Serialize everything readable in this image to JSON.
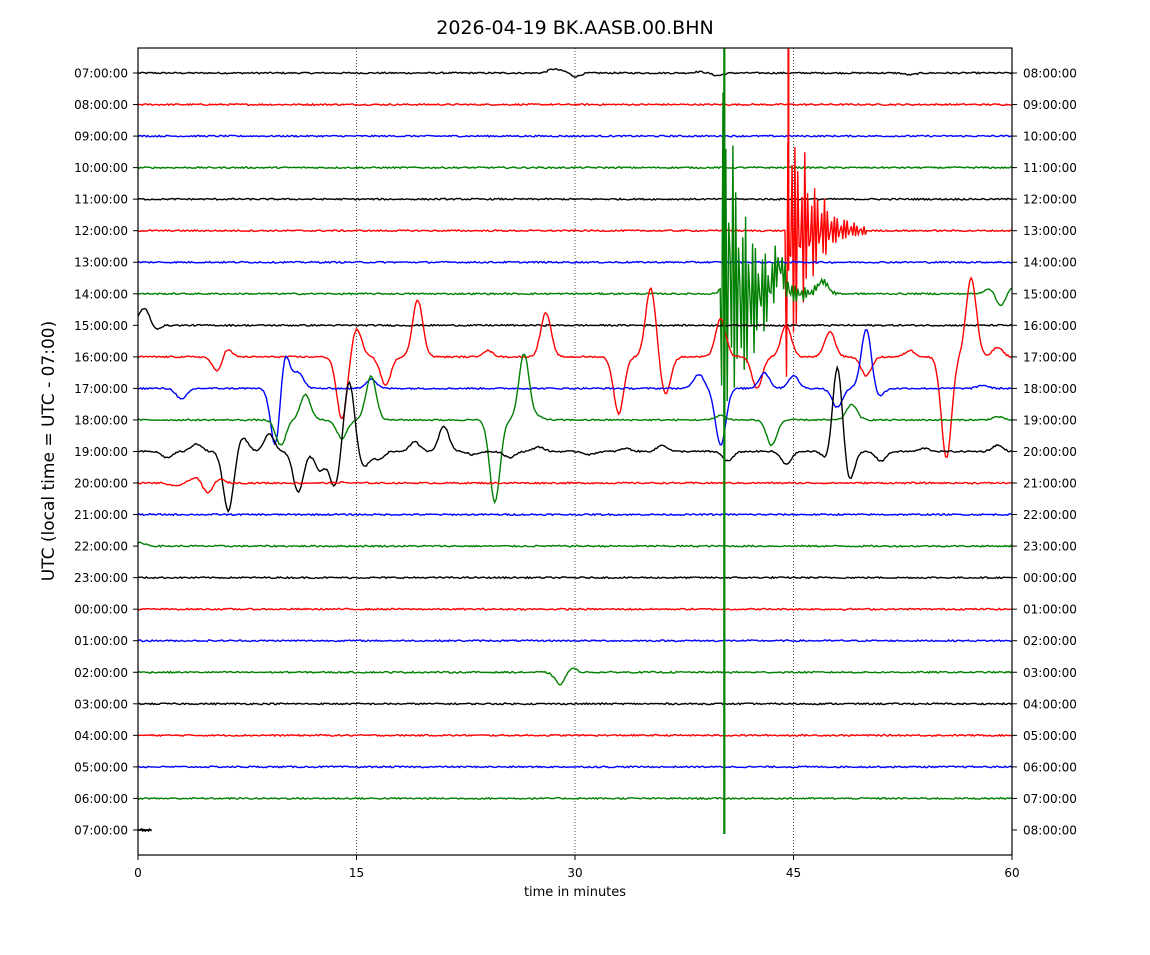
{
  "chart_data": {
    "type": "line",
    "title": "2026-04-19 BK.AASB.00.BHN",
    "xlabel": "time in minutes",
    "ylabel": "UTC (local time = UTC - 07:00)",
    "xlim": [
      0,
      60
    ],
    "x_ticks": [
      0,
      15,
      30,
      45,
      60
    ],
    "grid": "vertical dotted lines at 15, 30, 45",
    "left_labels": [
      "07:00:00",
      "08:00:00",
      "09:00:00",
      "10:00:00",
      "11:00:00",
      "12:00:00",
      "13:00:00",
      "14:00:00",
      "15:00:00",
      "16:00:00",
      "17:00:00",
      "18:00:00",
      "19:00:00",
      "20:00:00",
      "21:00:00",
      "22:00:00",
      "23:00:00",
      "00:00:00",
      "01:00:00",
      "02:00:00",
      "03:00:00",
      "04:00:00",
      "05:00:00",
      "06:00:00",
      "07:00:00"
    ],
    "right_labels": [
      "08:00:00",
      "09:00:00",
      "10:00:00",
      "11:00:00",
      "12:00:00",
      "13:00:00",
      "14:00:00",
      "15:00:00",
      "16:00:00",
      "17:00:00",
      "18:00:00",
      "19:00:00",
      "20:00:00",
      "21:00:00",
      "22:00:00",
      "23:00:00",
      "00:00:00",
      "01:00:00",
      "02:00:00",
      "03:00:00",
      "04:00:00",
      "05:00:00",
      "06:00:00",
      "07:00:00",
      "08:00:00"
    ],
    "trace_colors": [
      "#000000",
      "#ff0000",
      "#0000ff",
      "#008000"
    ],
    "events": [
      {
        "row": 0,
        "x": [
          28.5,
          29.3,
          30.0,
          38.5,
          39.8,
          53.0
        ],
        "y": [
          0.12,
          0.06,
          -0.12,
          0.04,
          -0.08,
          -0.06
        ]
      },
      {
        "row": 4,
        "x": [
          0.5,
          44.0
        ],
        "y": [
          0.0,
          0.0
        ]
      },
      {
        "row": 6,
        "x": [
          11.2,
          56.8
        ],
        "y": [
          0.0,
          0.0
        ]
      },
      {
        "row": 7,
        "x": [
          40.5,
          44.0,
          47.0,
          58.5,
          59.2,
          60.0
        ],
        "y": [
          0.5,
          0.9,
          0.4,
          0.2,
          -0.4,
          0.2
        ]
      },
      {
        "row": 8,
        "x": [
          0.2,
          0.6,
          1.0,
          1.5,
          60.0
        ],
        "y": [
          0.2,
          0.5,
          -0.25,
          0.0,
          0.0
        ]
      },
      {
        "row": 9,
        "x": [
          5.5,
          6.0,
          14.0,
          15.0,
          17.0,
          19.2,
          24.0,
          28.0,
          33.0,
          35.2,
          36.2,
          40.0,
          42.5,
          44.5,
          47.5,
          50.0,
          53.0,
          55.5,
          57.2,
          59.0
        ],
        "y": [
          -0.55,
          0.35,
          -2.0,
          0.9,
          -0.9,
          1.8,
          0.2,
          1.4,
          -1.8,
          2.2,
          -1.2,
          1.2,
          -1.0,
          1.0,
          0.8,
          -0.6,
          0.2,
          -3.2,
          2.5,
          0.3
        ]
      },
      {
        "row": 10,
        "x": [
          3.0,
          9.5,
          10.0,
          11.0,
          16.0,
          38.5,
          40.0,
          43.0,
          45.0,
          48.0,
          50.0,
          50.8,
          58.0
        ],
        "y": [
          -0.35,
          -2.2,
          1.5,
          0.5,
          0.3,
          0.45,
          -1.8,
          0.5,
          0.4,
          -0.6,
          1.9,
          -0.3,
          0.1
        ]
      },
      {
        "row": 11,
        "x": [
          9.8,
          11.5,
          14.0,
          16.0,
          24.5,
          26.5,
          27.5,
          40.0,
          43.5,
          49.0,
          59.0
        ],
        "y": [
          -0.8,
          0.8,
          -0.6,
          1.4,
          -2.6,
          2.1,
          0.1,
          0.15,
          -0.8,
          0.5,
          0.1
        ]
      },
      {
        "row": 12,
        "x": [
          2.0,
          4.0,
          6.2,
          7.2,
          9.0,
          11.0,
          12.5,
          13.5,
          14.5,
          15.5,
          16.5,
          19.0,
          21.0,
          23.0,
          25.5,
          27.5,
          31.0,
          33.5,
          36.0,
          40.5,
          44.5,
          47.5,
          48.0,
          48.8,
          49.5,
          51.0,
          54.0,
          59.0
        ],
        "y": [
          -0.2,
          0.25,
          -1.9,
          0.45,
          0.55,
          -1.3,
          -0.6,
          -1.1,
          2.2,
          -0.5,
          -0.25,
          0.3,
          0.8,
          -0.1,
          -0.2,
          0.15,
          -0.1,
          0.1,
          0.2,
          -0.3,
          -0.4,
          -0.5,
          2.9,
          -1.0,
          0.0,
          -0.3,
          0.1,
          0.2
        ]
      },
      {
        "row": 13,
        "x": [
          2.5,
          4.0,
          4.8,
          5.5,
          14.0
        ],
        "y": [
          -0.1,
          0.2,
          -0.35,
          0.15,
          0.02
        ]
      },
      {
        "row": 15,
        "x": [
          0.2
        ],
        "y": [
          0.1
        ]
      },
      {
        "row": 18,
        "x": [
          55.5
        ],
        "y": [
          0.0
        ]
      },
      {
        "row": 19,
        "x": [
          29.0,
          29.7,
          31.0
        ],
        "y": [
          -0.4,
          0.15,
          0.0
        ]
      },
      {
        "row": 20,
        "x": [
          3.0,
          44.0
        ],
        "y": [
          0.0,
          0.0
        ]
      },
      {
        "row": 24,
        "x": [
          0.0,
          0.8
        ],
        "y": [
          0.0,
          0.0
        ]
      }
    ],
    "earthquakes": [
      {
        "row": 7,
        "color": "#008000",
        "x_start": 40.0,
        "x_end": 48.0,
        "max_amplitude": 9.0,
        "note": "large burst, green trace extends from top of plot to bottom"
      },
      {
        "row": 5,
        "color": "#ff0000",
        "x_start": 44.5,
        "x_end": 50.0,
        "max_amplitude": 5.5,
        "note": "red burst reaching top of plot"
      }
    ]
  }
}
